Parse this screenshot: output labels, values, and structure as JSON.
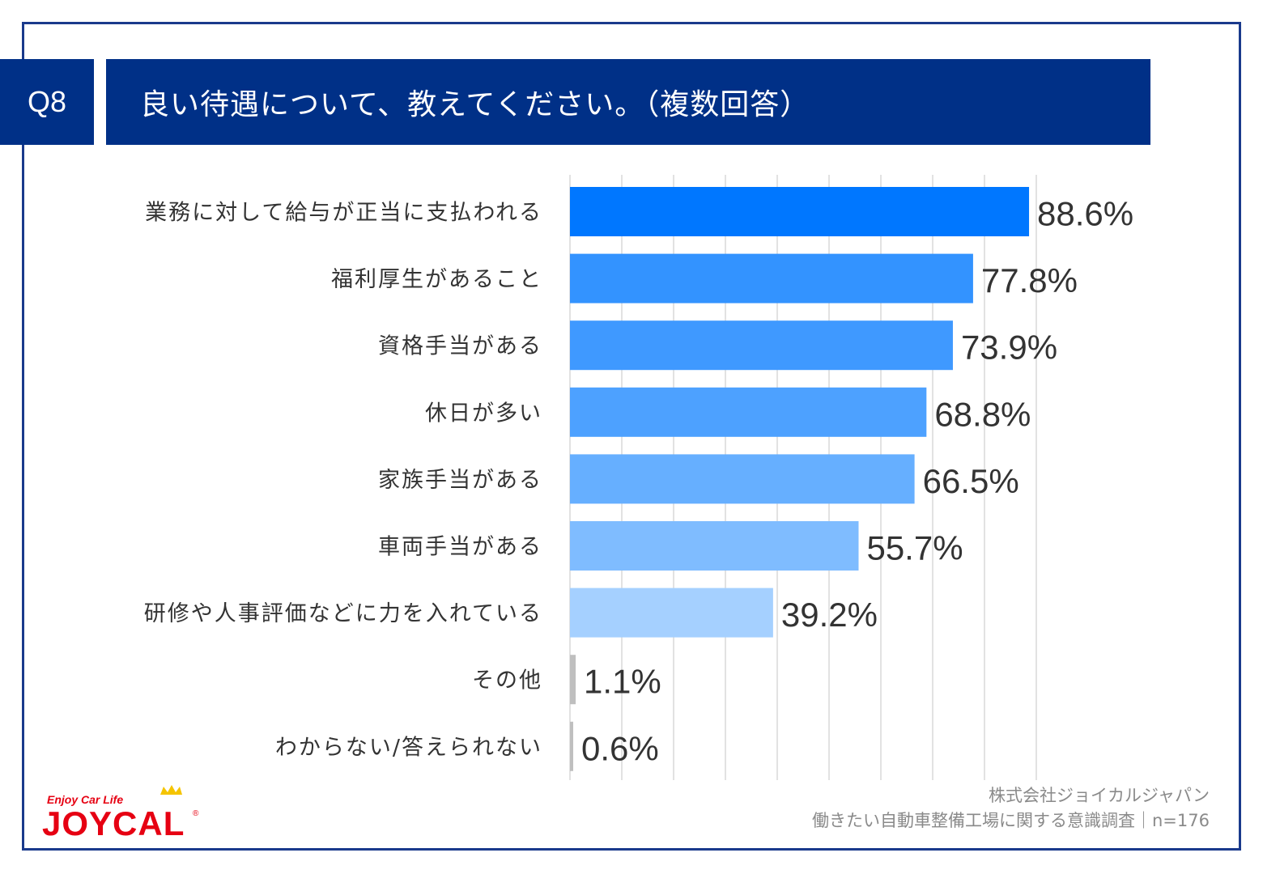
{
  "header": {
    "question_id": "Q8",
    "title": "良い待遇について、教えてください。（複数回答）"
  },
  "chart_data": {
    "type": "bar",
    "orientation": "horizontal",
    "categories": [
      "業務に対して給与が正当に支払われる",
      "福利厚生があること",
      "資格手当がある",
      "休日が多い",
      "家族手当がある",
      "車両手当がある",
      "研修や人事評価などに力を入れている",
      "その他",
      "わからない/答えられない"
    ],
    "values": [
      88.6,
      77.8,
      73.9,
      68.8,
      66.5,
      55.7,
      39.2,
      1.1,
      0.6
    ],
    "value_labels": [
      "88.6%",
      "77.8%",
      "73.9%",
      "68.8%",
      "66.5%",
      "55.7%",
      "39.2%",
      "1.1%",
      "0.6%"
    ],
    "colors": [
      "#0077ff",
      "#3393ff",
      "#3f99ff",
      "#4da1ff",
      "#66afff",
      "#7fbcff",
      "#a5d0ff",
      "#bfbfbf",
      "#bfbfbf"
    ],
    "xlim": [
      0,
      100
    ],
    "grid": true
  },
  "footer": {
    "company": "株式会社ジョイカルジャパン",
    "survey": "働きたい自動車整備工場に関する意識調査｜n=176"
  },
  "logo": {
    "tagline": "Enjoy Car Life",
    "brand": "JOYCAL",
    "mark": "®",
    "colors": {
      "text": "#e60012",
      "crown": "#f5c400"
    }
  }
}
